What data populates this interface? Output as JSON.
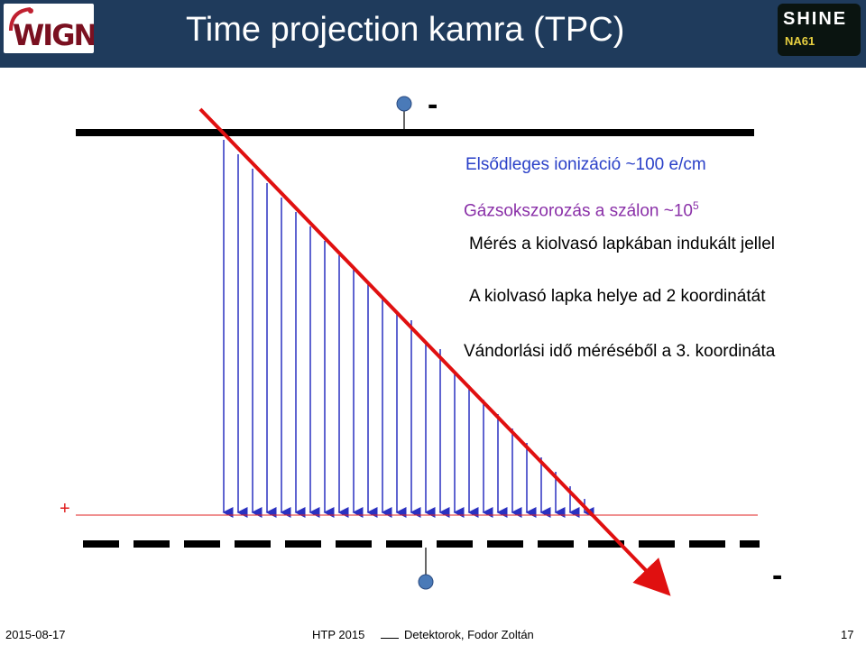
{
  "header": {
    "title": "Time projection kamra (TPC)",
    "logo_left_text": "WIGNER",
    "logo_right_top": "SHINE",
    "logo_right_bottom": "NA61"
  },
  "diagram": {
    "top_sign": "-",
    "bottom_sign": "-",
    "plus_sign": "+",
    "labels": {
      "primary_ionization": "Elsődleges ionizáció ~100 e/cm",
      "gas_multiplication": "Gázsokszorozás a szálon ~10",
      "gas_multiplication_exp": "5",
      "measurement": "Mérés a kiolvasó lapkában indukált jellel",
      "pad_position": "A kiolvasó lapka helye ad 2 koordinátát",
      "drift_time": "Vándorlási idő méréséből a 3. koordináta"
    }
  },
  "footer": {
    "date": "2015-08-17",
    "conference": "HTP 2015",
    "author": "Detektorok, Fodor Zoltán",
    "page": "17"
  }
}
